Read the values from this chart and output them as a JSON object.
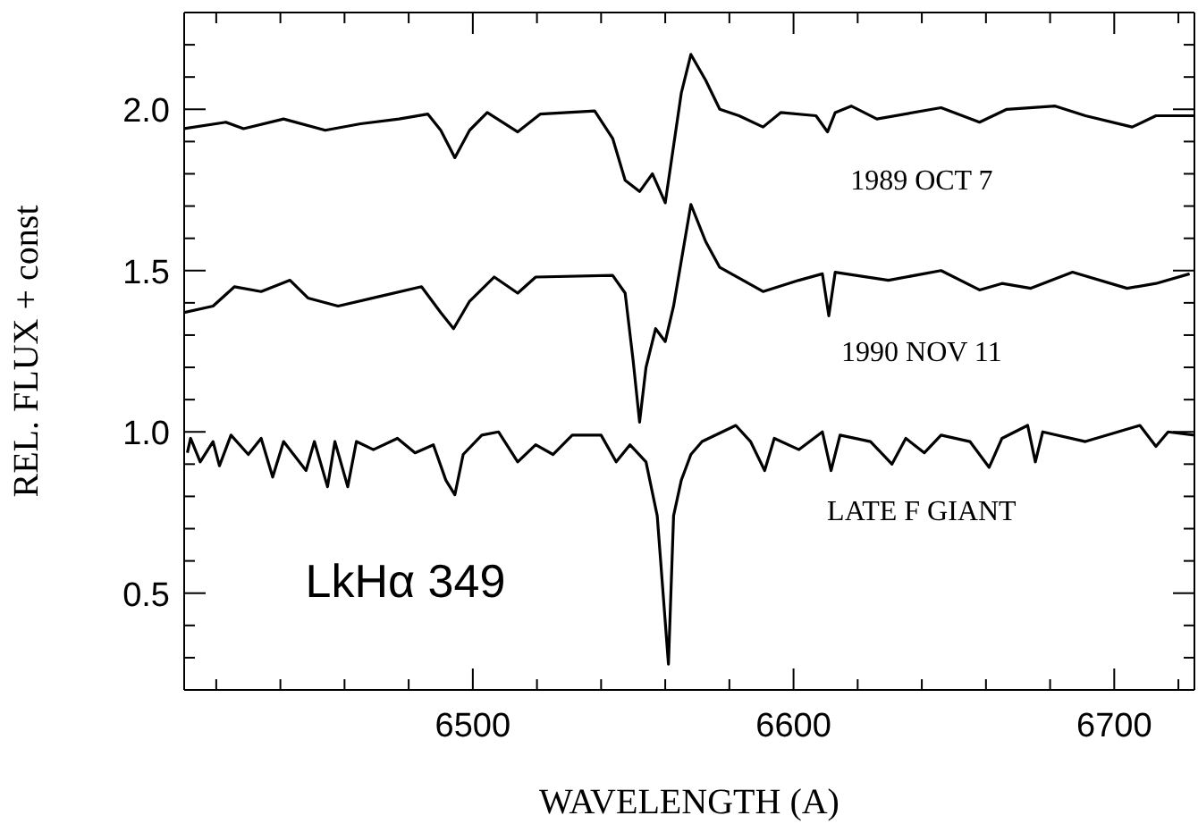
{
  "chart_data": {
    "type": "line",
    "xlabel": "WAVELENGTH (A)",
    "ylabel": "REL. FLUX + const",
    "annotations": [
      "LkHα 349"
    ],
    "xlim": [
      6410,
      6725
    ],
    "ylim": [
      0.2,
      2.3
    ],
    "xticks": [
      {
        "value": 6420,
        "label": null
      },
      {
        "value": 6440,
        "label": null
      },
      {
        "value": 6460,
        "label": null
      },
      {
        "value": 6480,
        "label": null
      },
      6500,
      {
        "value": 6520,
        "label": null
      },
      {
        "value": 6540,
        "label": null
      },
      {
        "value": 6560,
        "label": null
      },
      {
        "value": 6580,
        "label": null
      },
      6600,
      {
        "value": 6620,
        "label": null
      },
      {
        "value": 6640,
        "label": null
      },
      {
        "value": 6660,
        "label": null
      },
      {
        "value": 6680,
        "label": null
      },
      6700,
      {
        "value": 6720,
        "label": null
      }
    ],
    "yticks": [
      {
        "value": 0.3,
        "label": null
      },
      {
        "value": 0.4,
        "label": null
      },
      0.5,
      {
        "value": 0.6,
        "label": null
      },
      {
        "value": 0.7,
        "label": null
      },
      {
        "value": 0.8,
        "label": null
      },
      {
        "value": 0.9,
        "label": null
      },
      {
        "value": 1,
        "label": "1.0"
      },
      {
        "value": 1.1,
        "label": null
      },
      {
        "value": 1.2,
        "label": null
      },
      {
        "value": 1.3,
        "label": null
      },
      {
        "value": 1.4,
        "label": null
      },
      1.5,
      {
        "value": 1.6,
        "label": null
      },
      {
        "value": 1.7,
        "label": null
      },
      {
        "value": 1.8,
        "label": null
      },
      {
        "value": 1.9,
        "label": null
      },
      {
        "value": 2,
        "label": "2.0"
      },
      {
        "value": 2.1,
        "label": null
      },
      {
        "value": 2.2,
        "label": null
      }
    ],
    "series": [
      {
        "name": "1989 OCT 7",
        "color": "#000000",
        "x": [
          6410,
          6423,
          6428.5,
          6441,
          6454,
          6465,
          6477,
          6486,
          6490,
          6494.4,
          6499,
          6504.5,
          6514,
          6521,
          6538,
          6543.6,
          6547.5,
          6552,
          6556,
          6560,
          6565,
          6568,
          6572.6,
          6577,
          6583,
          6590.5,
          6596,
          6607,
          6610.6,
          6613,
          6618,
          6626,
          6646,
          6658,
          6666.5,
          6681.6,
          6691,
          6705.6,
          6713,
          6725
        ],
        "values": [
          1.94,
          1.96,
          1.94,
          1.97,
          1.935,
          1.955,
          1.97,
          1.985,
          1.935,
          1.85,
          1.935,
          1.99,
          1.93,
          1.985,
          1.995,
          1.91,
          1.78,
          1.745,
          1.8,
          1.71,
          2.05,
          2.17,
          2.09,
          2.0,
          1.98,
          1.945,
          1.99,
          1.98,
          1.93,
          1.99,
          2.01,
          1.97,
          2.005,
          1.96,
          2.0,
          2.01,
          1.98,
          1.945,
          1.98,
          1.98
        ]
      },
      {
        "name": "1990 NOV 11",
        "color": "#000000",
        "x": [
          6410,
          6419,
          6425.7,
          6434,
          6443,
          6448.6,
          6458,
          6471,
          6484,
          6490,
          6494,
          6499,
          6506.7,
          6514,
          6519.6,
          6543.6,
          6547.5,
          6550,
          6552,
          6554,
          6557,
          6560,
          6562.6,
          6568,
          6572.6,
          6577,
          6590.5,
          6601.7,
          6609,
          6611,
          6613,
          6629.6,
          6646,
          6658,
          6665,
          6674,
          6687,
          6704,
          6713,
          6723.5
        ],
        "values": [
          1.37,
          1.39,
          1.45,
          1.435,
          1.47,
          1.415,
          1.39,
          1.42,
          1.45,
          1.37,
          1.32,
          1.405,
          1.48,
          1.43,
          1.48,
          1.485,
          1.43,
          1.22,
          1.03,
          1.2,
          1.32,
          1.28,
          1.39,
          1.705,
          1.59,
          1.51,
          1.435,
          1.47,
          1.49,
          1.36,
          1.495,
          1.47,
          1.5,
          1.44,
          1.46,
          1.445,
          1.495,
          1.445,
          1.46,
          1.49
        ]
      },
      {
        "name": "LATE F GIANT",
        "color": "#000000",
        "x": [
          6411,
          6412,
          6415,
          6419,
          6421,
          6424.6,
          6430,
          6434,
          6437.6,
          6441,
          6448,
          6450.6,
          6454.7,
          6457,
          6461,
          6463.7,
          6469,
          6476.5,
          6482,
          6487.7,
          6491.6,
          6494.4,
          6497,
          6502.8,
          6508,
          6514,
          6519.6,
          6525,
          6531,
          6540,
          6544.7,
          6549,
          6554,
          6557.5,
          6561,
          6562.6,
          6565,
          6568,
          6571.5,
          6582,
          6586.6,
          6591,
          6594,
          6601.7,
          6609,
          6611.7,
          6614.5,
          6624,
          6630.7,
          6635,
          6640.8,
          6646,
          6655,
          6661,
          6665,
          6673,
          6675.4,
          6677.7,
          6691,
          6708,
          6713,
          6716.8,
          6725
        ],
        "values": [
          0.935,
          0.98,
          0.907,
          0.97,
          0.895,
          0.99,
          0.93,
          0.98,
          0.86,
          0.97,
          0.88,
          0.97,
          0.83,
          0.97,
          0.83,
          0.97,
          0.945,
          0.98,
          0.935,
          0.96,
          0.85,
          0.805,
          0.93,
          0.99,
          1.0,
          0.907,
          0.96,
          0.93,
          0.99,
          0.99,
          0.907,
          0.96,
          0.907,
          0.74,
          0.28,
          0.74,
          0.85,
          0.93,
          0.97,
          1.02,
          0.97,
          0.88,
          0.98,
          0.945,
          1.0,
          0.88,
          0.99,
          0.97,
          0.9,
          0.98,
          0.935,
          0.99,
          0.97,
          0.89,
          0.98,
          1.02,
          0.907,
          1.0,
          0.97,
          1.02,
          0.955,
          1.0,
          0.99
        ]
      }
    ]
  }
}
